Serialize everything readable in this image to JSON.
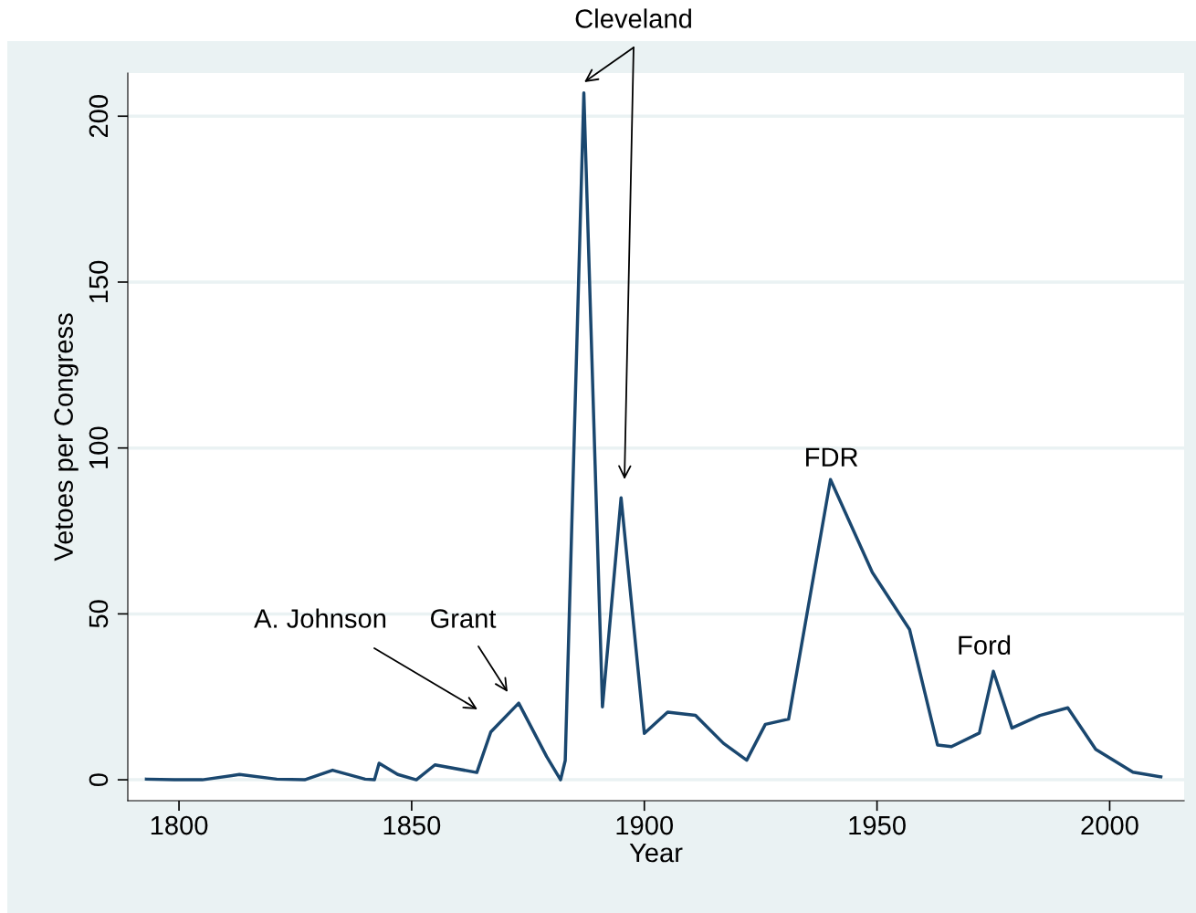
{
  "chart_data": {
    "type": "line",
    "xlabel": "Year",
    "ylabel": "Vetoes per Congress",
    "x": [
      1793,
      1799,
      1805,
      1813,
      1821,
      1827,
      1833,
      1840,
      1842,
      1843,
      1847,
      1851,
      1855,
      1864,
      1867,
      1873,
      1879,
      1882,
      1883,
      1887,
      1891,
      1895,
      1900,
      1905,
      1911,
      1917,
      1922,
      1926,
      1931,
      1940,
      1949,
      1957,
      1963,
      1966,
      1972,
      1975,
      1979,
      1985,
      1991,
      1997,
      2005,
      2011
    ],
    "series": [
      {
        "color": "#1a476f",
        "values": [
          0.2,
          0,
          0,
          1.6,
          0.2,
          0,
          2.9,
          0.2,
          0,
          5,
          1.6,
          0,
          4.5,
          2.2,
          14.4,
          23.1,
          7,
          0,
          5.8,
          207,
          22,
          85,
          14,
          20.4,
          19.4,
          11,
          5.9,
          16.7,
          18.3,
          90.5,
          62.5,
          45.3,
          10.5,
          10,
          14.1,
          32.7,
          15.6,
          19.4,
          21.7,
          9.2,
          2.3,
          0.9
        ]
      }
    ],
    "xlim": [
      1789,
      2016
    ],
    "xticks": [
      1800,
      1850,
      1900,
      1950,
      2000
    ],
    "ylim": [
      -6.3,
      213
    ],
    "yticks": [
      0,
      50,
      100,
      150,
      200
    ],
    "grid": "y",
    "marker": "none",
    "line_style": "solid",
    "annotations": [
      "A. Johnson",
      "Grant",
      "Cleveland",
      {
        "text": "FDR",
        "x": 1940,
        "y": 90.5
      },
      {
        "text": "Ford",
        "x": 1975,
        "y": 32.7
      }
    ]
  }
}
